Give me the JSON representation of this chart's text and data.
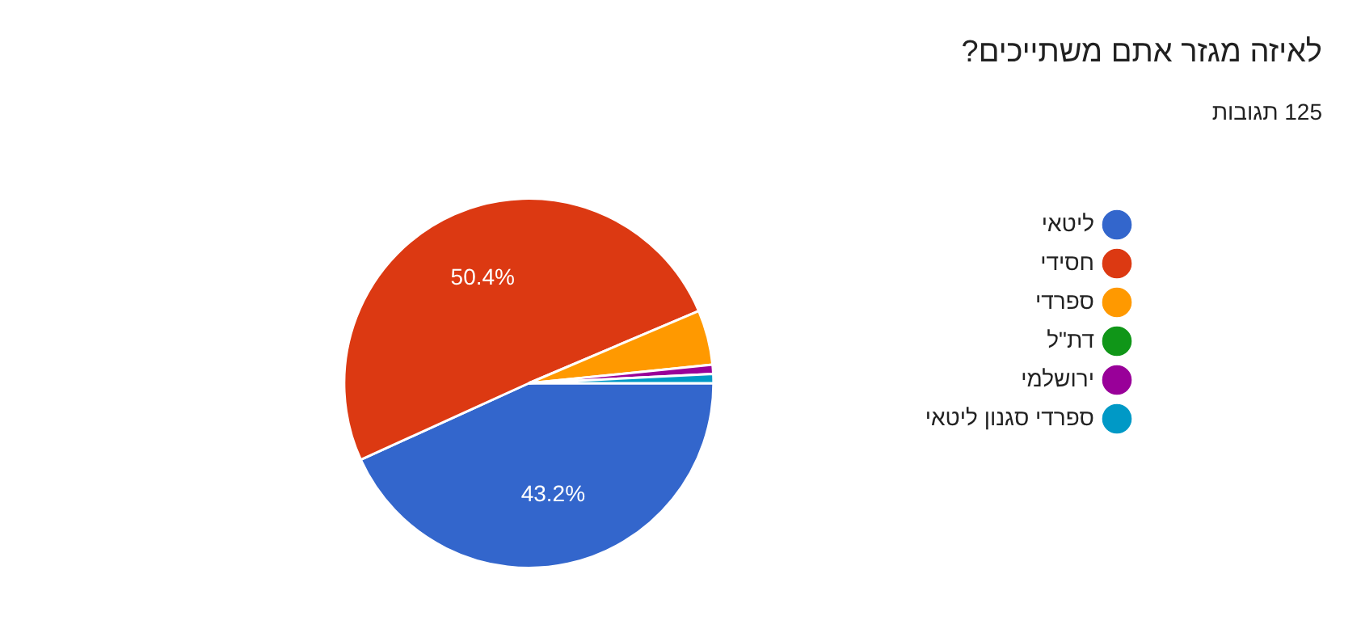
{
  "chart_data": {
    "type": "pie",
    "title": "לאיזה מגזר אתם משתייכים?",
    "subtitle": "125 תגובות",
    "categories": [
      "ליטאי",
      "חסידי",
      "ספרדי",
      "דת\"ל",
      "ירושלמי",
      "ספרדי סגנון ליטאי"
    ],
    "values": [
      43.2,
      50.4,
      4.8,
      0,
      0.8,
      0.8
    ],
    "colors": [
      "#3366cc",
      "#dc3912",
      "#ff9900",
      "#109618",
      "#990099",
      "#0099c6"
    ],
    "value_labels": [
      "43.2%",
      "50.4%",
      null,
      null,
      null,
      null
    ],
    "legend": "right"
  }
}
